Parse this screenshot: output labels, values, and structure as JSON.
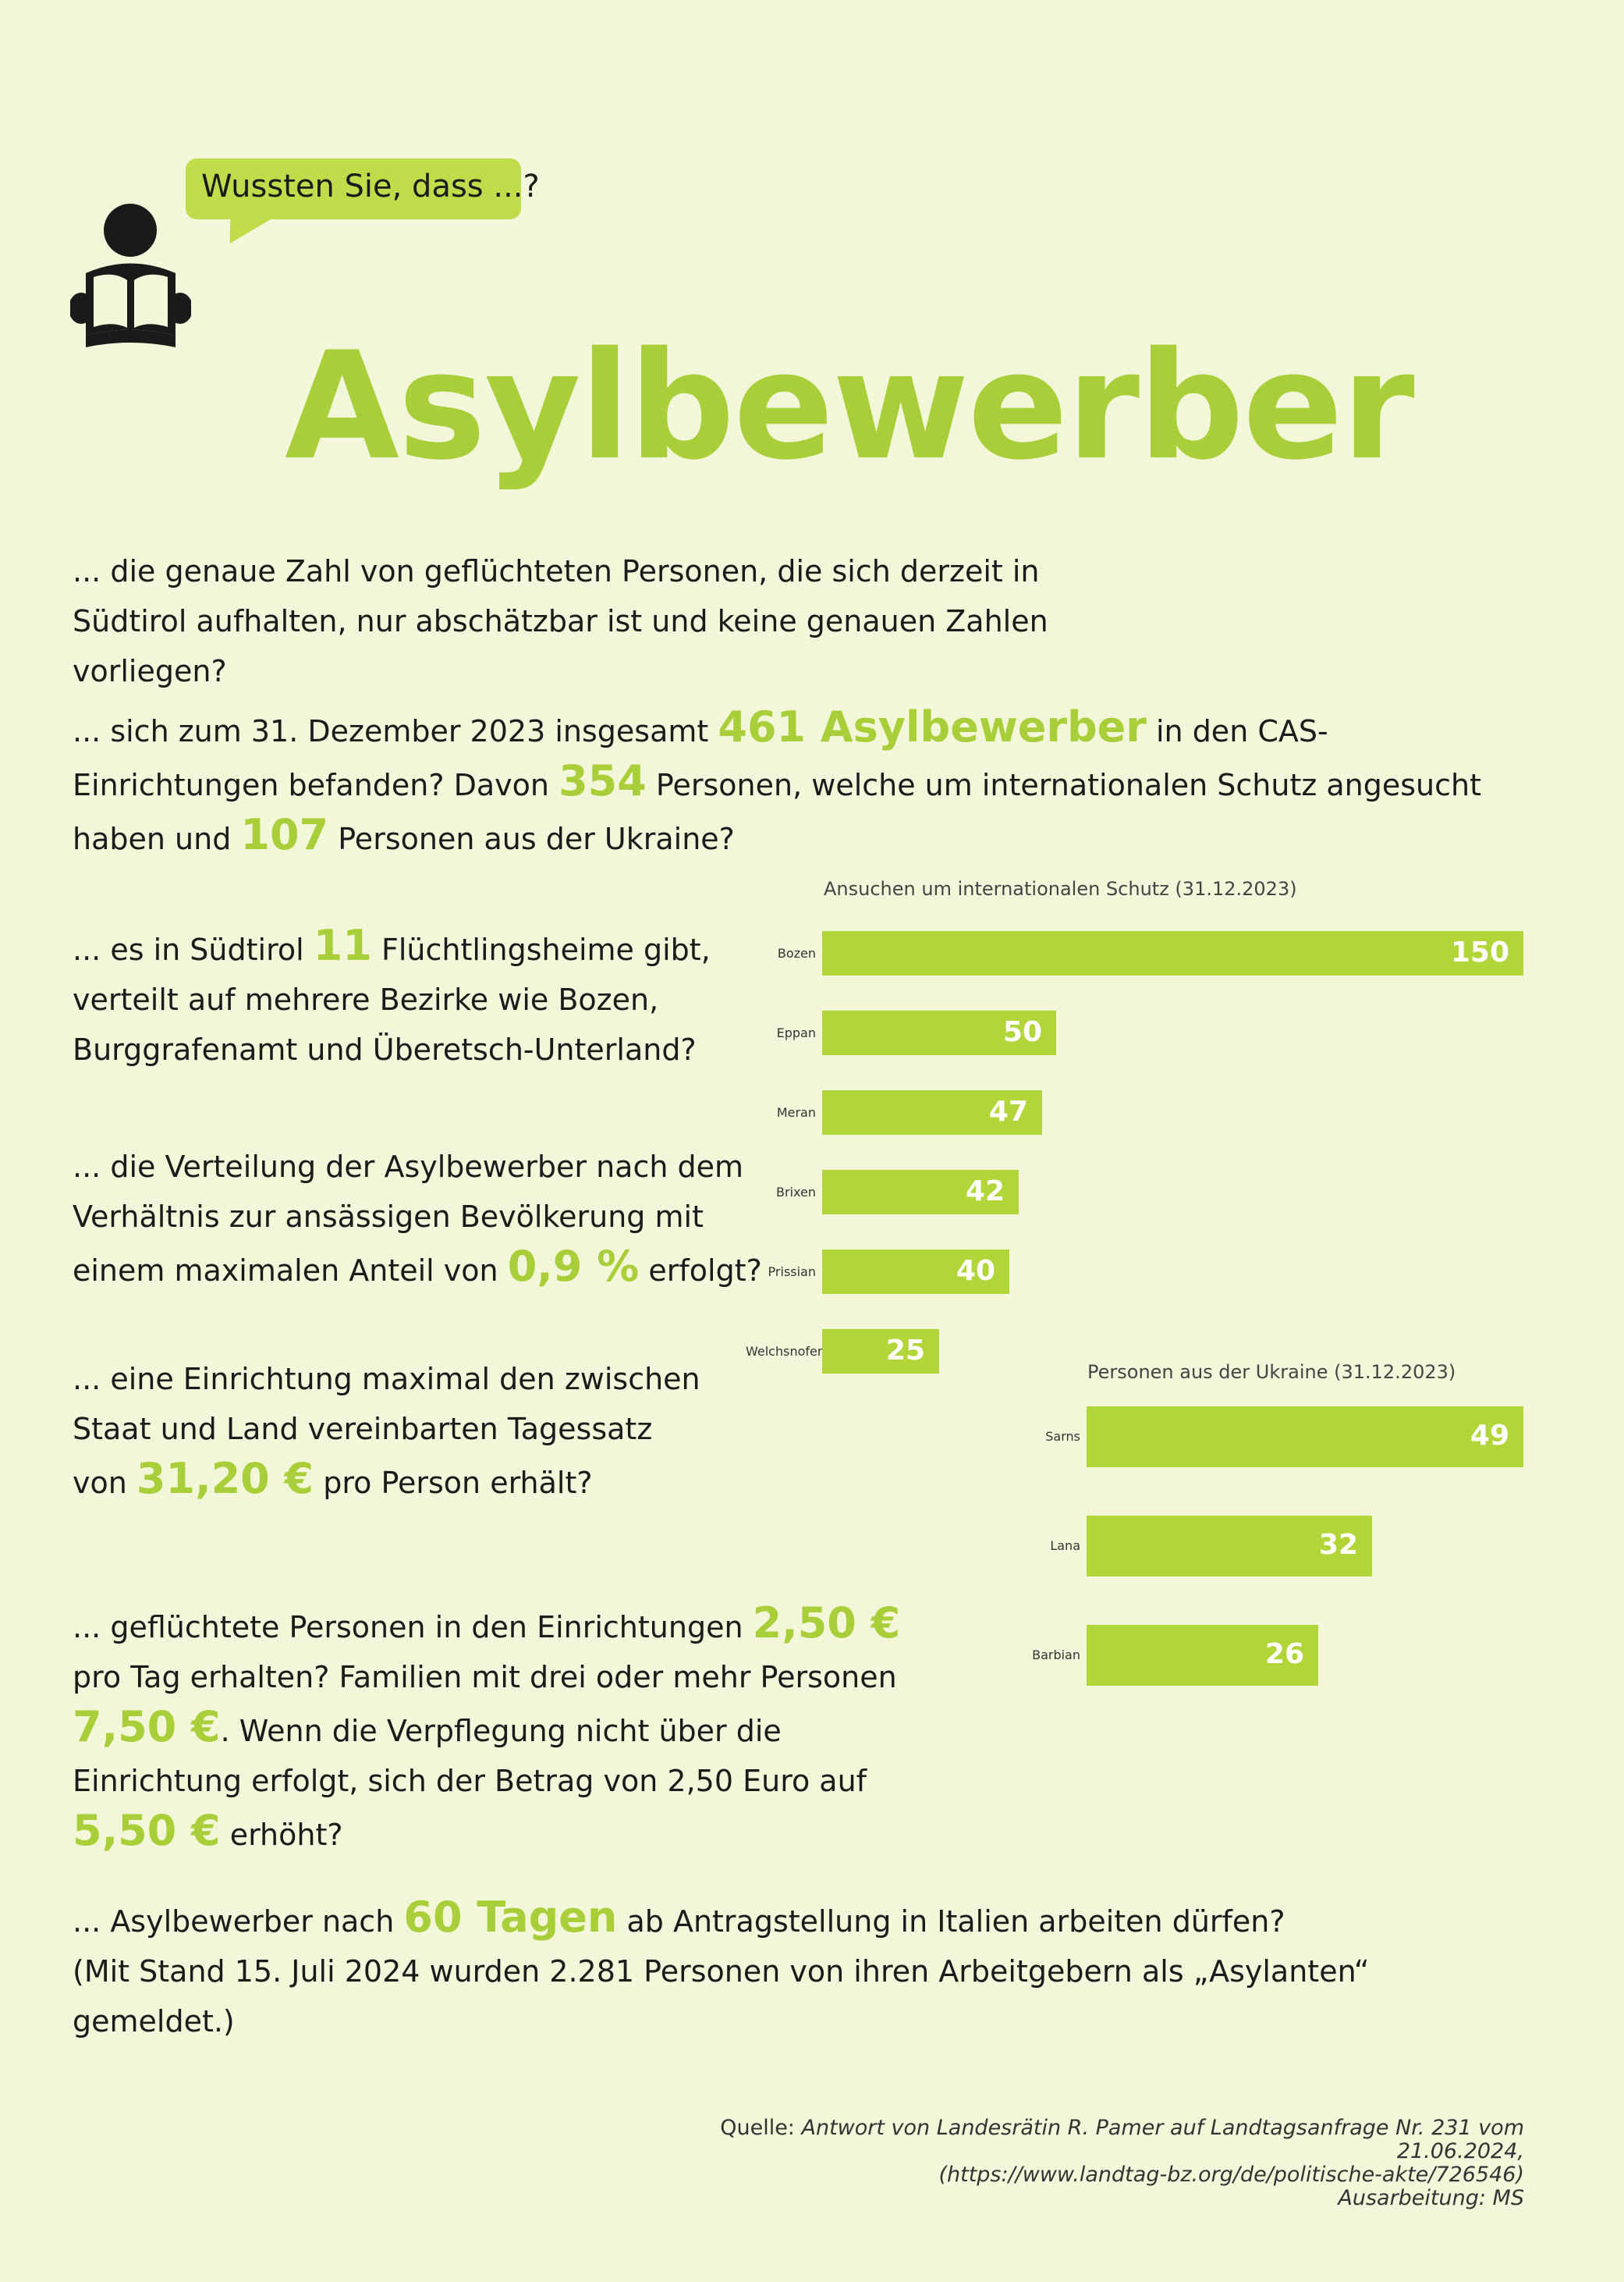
{
  "header": {
    "bubble_text": "Wussten Sie, dass ...?",
    "title": "Asylbewerber"
  },
  "paragraphs": {
    "p1": "... die genaue Zahl von geflüchteten Personen, die sich derzeit in Südtirol aufhalten, nur abschätzbar ist und keine genauen Zahlen vorliegen?",
    "p2_a": "... sich zum 31. Dezember 2023 insgesamt",
    "p2_hl1": "461 Asylbewerber",
    "p2_b": "in den CAS-Einrichtungen befanden? Davon",
    "p2_hl2": "354",
    "p2_c": "Personen, welche um internationalen Schutz angesucht haben und",
    "p2_hl3": "107",
    "p2_d": "Personen aus der Ukraine?",
    "p3_a": "... es in Südtirol",
    "p3_hl": "11",
    "p3_b": "Flüchtlingsheime gibt, verteilt auf mehrere Bezirke wie Bozen, Burggrafenamt und Überetsch-Unterland?",
    "p4_a": "... die Verteilung der Asylbewerber nach dem Verhältnis zur ansässigen Bevölkerung mit einem maximalen Anteil von",
    "p4_hl": "0,9 %",
    "p4_b": "erfolgt?",
    "p5_a": "... eine Einrichtung maximal den zwischen Staat und Land vereinbarten Tagessatz von",
    "p5_hl": "31,20 €",
    "p5_b": "pro Person erhält?",
    "p6_a": "... geflüchtete Personen in den Einrichtungen",
    "p6_hl1": "2,50 €",
    "p6_b": "pro Tag erhalten? Familien mit drei oder mehr Personen",
    "p6_hl2": "7,50 €",
    "p6_c": ". Wenn die Verpflegung nicht über die Einrichtung erfolgt, sich der Betrag von 2,50 Euro auf",
    "p6_hl3": "5,50 €",
    "p6_d": "erhöht?",
    "p7_a": "... Asylbewerber nach",
    "p7_hl": "60 Tagen",
    "p7_b": "ab Antragstellung in Italien arbeiten dürfen?",
    "p7_c": "(Mit Stand 15. Juli 2024 wurden 2.281 Personen von ihren Arbeitgebern als „Asylanten“ gemeldet.)"
  },
  "source": {
    "label": "Quelle:",
    "line1": "Antwort von Landesrätin R. Pamer auf Landtagsanfrage Nr. 231 vom 21.06.2024,",
    "line2": "(https://www.landtag-bz.org/de/politische-akte/726546)",
    "line3": "Ausarbeitung: MS"
  },
  "colors": {
    "accent": "#a8cf3a",
    "bar": "#b2d63a",
    "background": "#f3f6d8"
  },
  "icons": {
    "reader": "person-reading-icon",
    "bubble": "speech-bubble-icon"
  },
  "chart_data": [
    {
      "type": "bar",
      "orientation": "horizontal",
      "title": "Ansuchen um internationalen Schutz (31.12.2023)",
      "categories": [
        "Bozen",
        "Eppan",
        "Meran",
        "Brixen",
        "Prissian",
        "Welchsnofen"
      ],
      "values": [
        150,
        50,
        47,
        42,
        40,
        25
      ],
      "xlim": [
        0,
        150
      ],
      "grid": false
    },
    {
      "type": "bar",
      "orientation": "horizontal",
      "title": "Personen aus der Ukraine (31.12.2023)",
      "categories": [
        "Sarns",
        "Lana",
        "Barbian"
      ],
      "values": [
        49,
        32,
        26
      ],
      "xlim": [
        0,
        49
      ],
      "grid": false
    }
  ]
}
